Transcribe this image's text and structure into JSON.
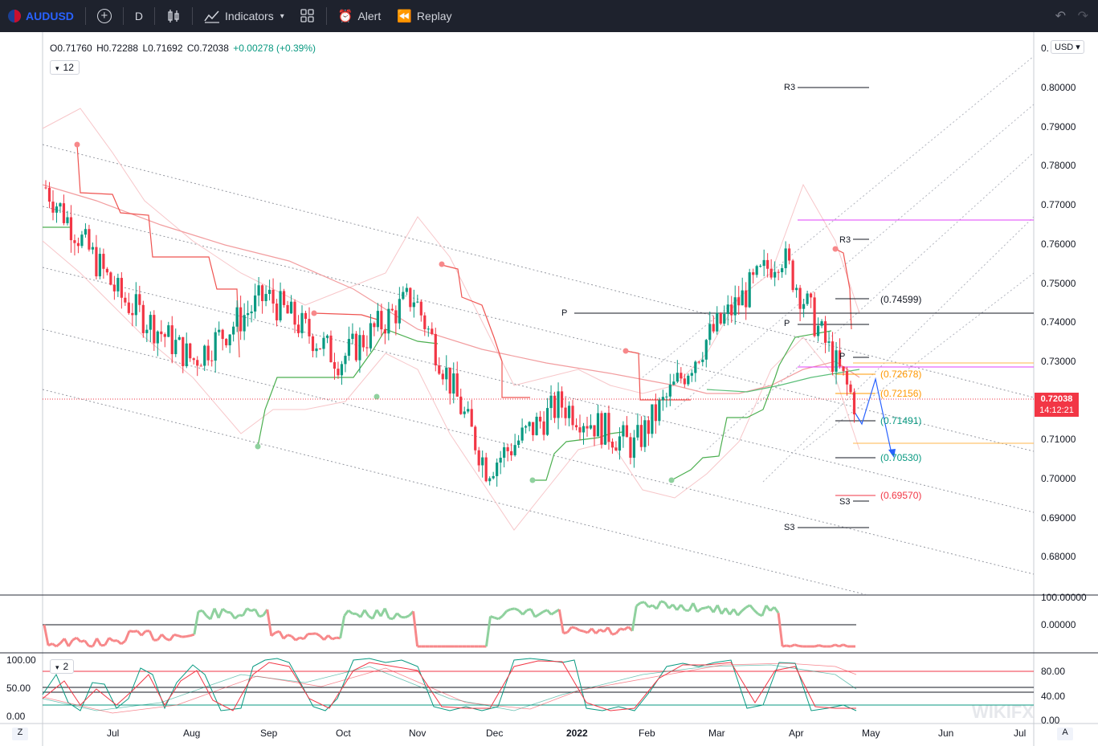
{
  "toolbar": {
    "symbol": "AUDUSD",
    "interval": "D",
    "indicators_label": "Indicators",
    "alert_label": "Alert",
    "replay_label": "Replay"
  },
  "legend": {
    "open": "O0.71760",
    "high": "H0.72288",
    "low": "L0.71692",
    "close": "C0.72038",
    "change": "+0.00278 (+0.39%)",
    "indicator_badge": "12",
    "stoch_badge": "2"
  },
  "currency_button": "USD",
  "price_axis_top_label": "0.",
  "current_price": {
    "value": "0.72038",
    "countdown": "14:12:21"
  },
  "level_labels": {
    "r3_top": "R3",
    "r3_recent": "R3",
    "p_old": "P",
    "p_mid": "P",
    "p_recent": "P",
    "s3_recent": "S3",
    "s3_bottom": "S3",
    "lvl_74599": "(0.74599)",
    "lvl_72678": "(0.72678)",
    "lvl_72156": "(0.72156)",
    "lvl_71491": "(0.71491)",
    "lvl_70530": "(0.70530)",
    "lvl_69570": "(0.69570)"
  },
  "price_axis_ticks": [
    "0.80000",
    "0.79000",
    "0.78000",
    "0.77000",
    "0.76000",
    "0.75000",
    "0.74000",
    "0.73000",
    "0.72000",
    "0.71000",
    "0.70000",
    "0.69000",
    "0.68000"
  ],
  "osc1_ticks": [
    "100.00000",
    "0.00000"
  ],
  "osc2_left_ticks": [
    "100.00",
    "50.00",
    "0.00"
  ],
  "osc2_right_ticks": [
    "80.00",
    "40.00",
    "0.00"
  ],
  "time_axis": [
    "Jul",
    "Aug",
    "Sep",
    "Oct",
    "Nov",
    "Dec",
    "2022",
    "Feb",
    "Mar",
    "Apr",
    "May",
    "Jun",
    "Jul"
  ],
  "bottom_buttons": {
    "left": "Z",
    "right": "A"
  },
  "watermark": "WIKIFX",
  "colors": {
    "up": "#089981",
    "down": "#f23645",
    "toolbar_bg": "#1e222d",
    "accent": "#2962ff"
  },
  "chart_data": {
    "type": "candlestick",
    "symbol": "AUDUSD",
    "ylim": [
      0.675,
      0.805
    ],
    "ohlc_last": {
      "open": 0.7176,
      "high": 0.72288,
      "low": 0.71692,
      "close": 0.72038
    },
    "approx_close_path": [
      {
        "month": "Jun",
        "close": 0.77
      },
      {
        "month": "Jul",
        "close": 0.745
      },
      {
        "month": "Aug",
        "close": 0.73
      },
      {
        "month": "Sep",
        "close": 0.745
      },
      {
        "month": "Oct",
        "close": 0.73
      },
      {
        "month": "Nov",
        "close": 0.745
      },
      {
        "month": "Dec",
        "close": 0.705
      },
      {
        "month": "2022",
        "close": 0.72
      },
      {
        "month": "Feb",
        "close": 0.71
      },
      {
        "month": "Mar",
        "close": 0.735
      },
      {
        "month": "Apr",
        "close": 0.755
      },
      {
        "month": "Apr-end",
        "close": 0.7204
      }
    ],
    "pivot_levels": [
      0.74599,
      0.72678,
      0.72156,
      0.71491,
      0.7053,
      0.6957
    ]
  }
}
